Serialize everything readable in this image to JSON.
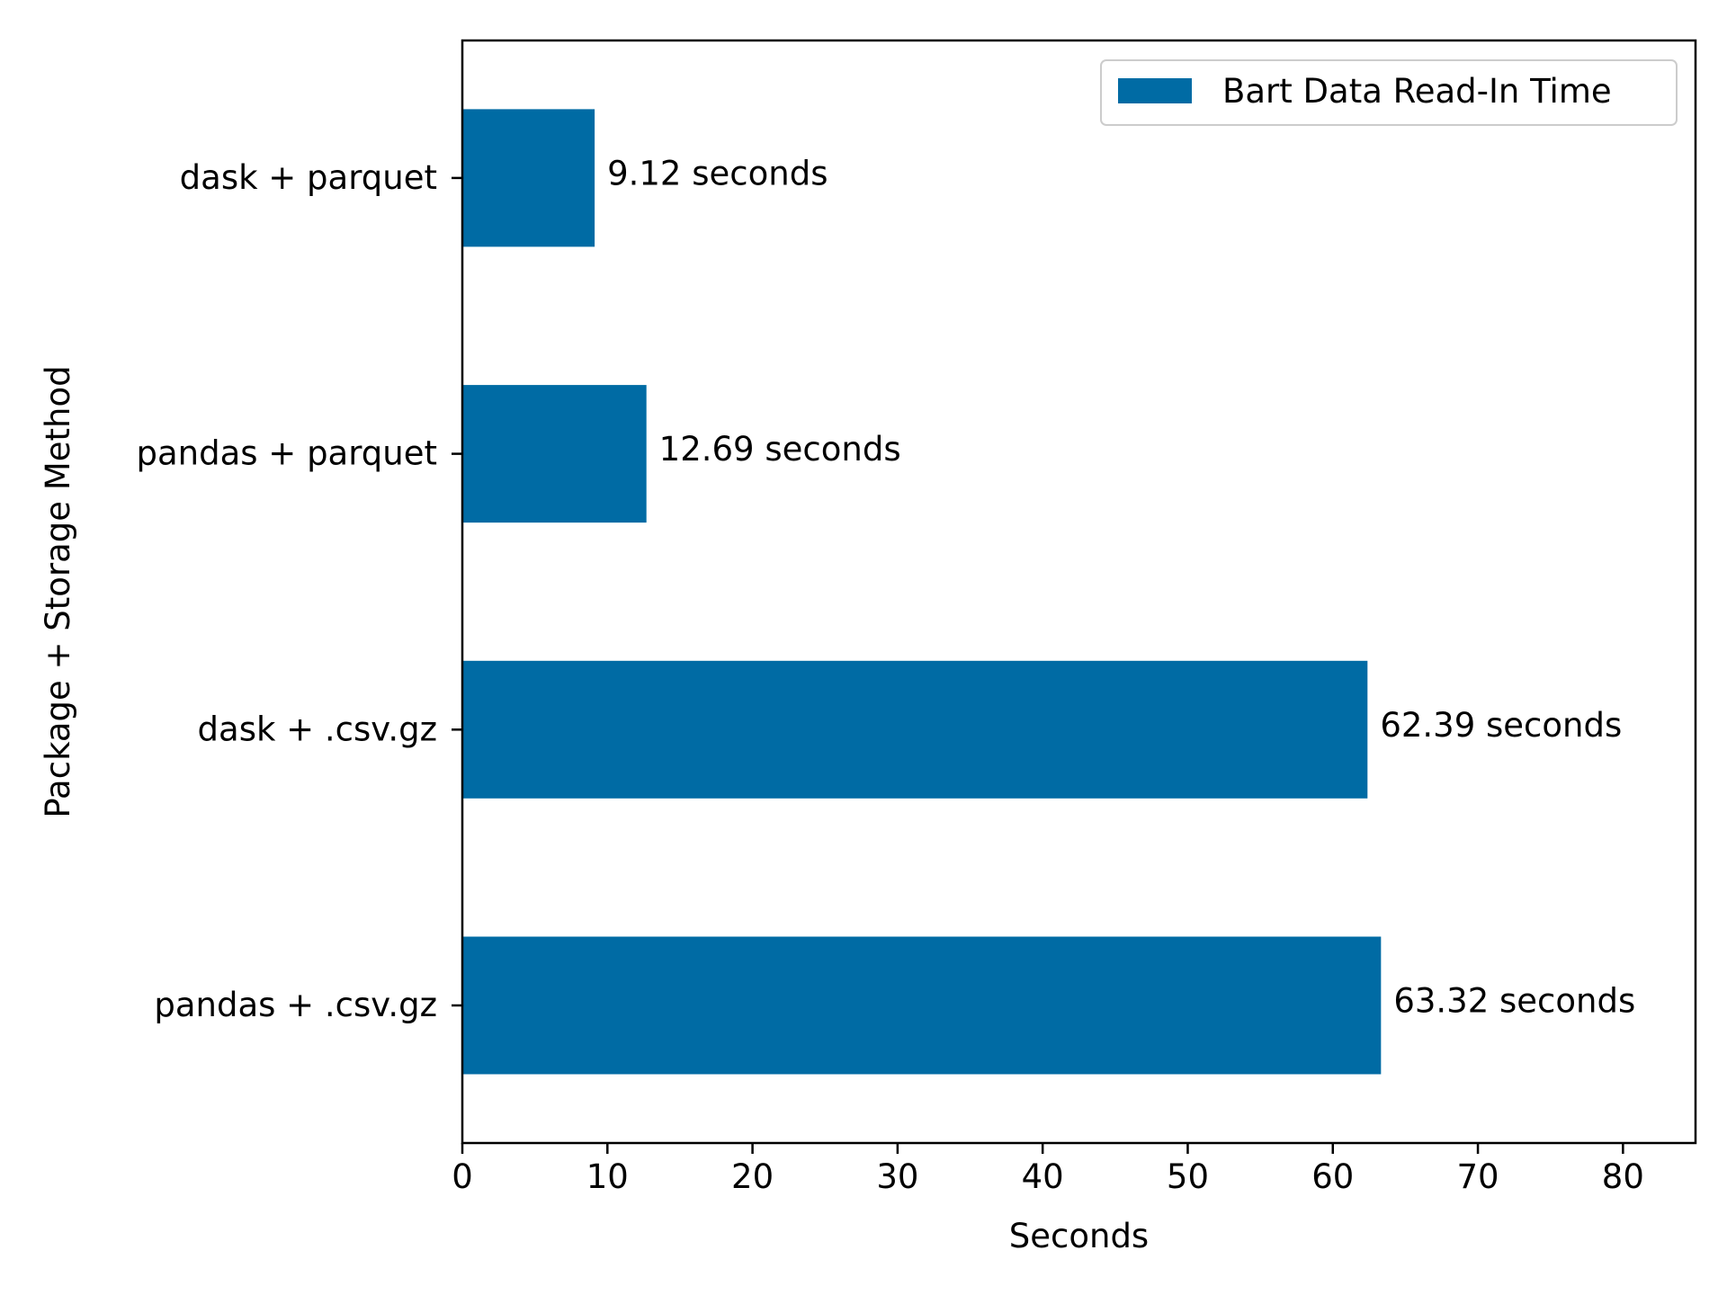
{
  "chart_data": {
    "type": "bar",
    "orientation": "horizontal",
    "categories": [
      "pandas + .csv.gz",
      "dask + .csv.gz",
      "pandas + parquet",
      "dask + parquet"
    ],
    "series": [
      {
        "name": "Bart Data Read-In Time",
        "values": [
          63.32,
          62.39,
          12.69,
          9.12
        ],
        "labels": [
          "63.32 seconds",
          "62.39 seconds",
          "12.69 seconds",
          "9.12 seconds"
        ],
        "color": "#006BA4"
      }
    ],
    "xlabel": "Seconds",
    "ylabel": "Package + Storage Method",
    "xlim": [
      0,
      85
    ],
    "xticks": [
      0,
      10,
      20,
      30,
      40,
      50,
      60,
      70,
      80
    ],
    "grid": false,
    "legend_position": "top-right"
  }
}
